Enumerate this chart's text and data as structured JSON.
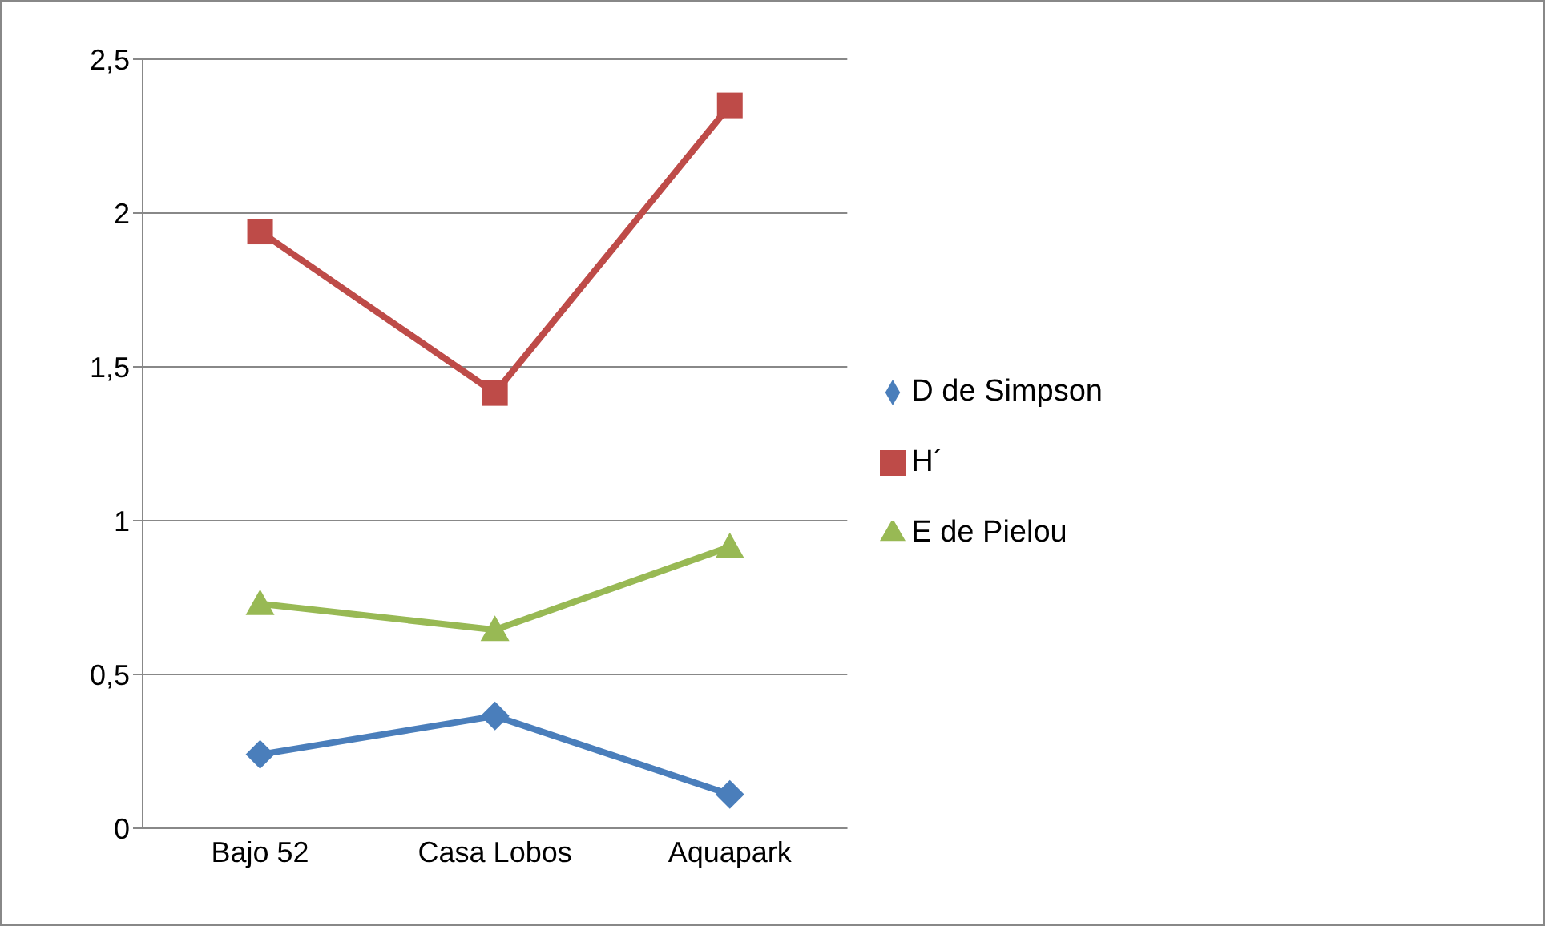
{
  "chart_data": {
    "type": "line",
    "categories": [
      "Bajo 52",
      "Casa Lobos",
      "Aquapark"
    ],
    "series": [
      {
        "name": "D de Simpson",
        "color": "#4a7ebb",
        "marker": "diamond",
        "values": [
          0.24,
          0.365,
          0.11
        ]
      },
      {
        "name": "H´",
        "color": "#be4b48",
        "marker": "square",
        "values": [
          1.94,
          1.415,
          2.35
        ]
      },
      {
        "name": "E de Pielou",
        "color": "#98b954",
        "marker": "triangle",
        "values": [
          0.73,
          0.645,
          0.915
        ]
      }
    ],
    "ylim": [
      0,
      2.5
    ],
    "yticks": [
      0,
      {
        "value": 0.5,
        "label": "0,5"
      },
      1,
      {
        "value": 1.5,
        "label": "1,5"
      },
      2,
      {
        "value": 2.5,
        "label": "2,5"
      }
    ],
    "grid": "y",
    "legend": "right"
  }
}
